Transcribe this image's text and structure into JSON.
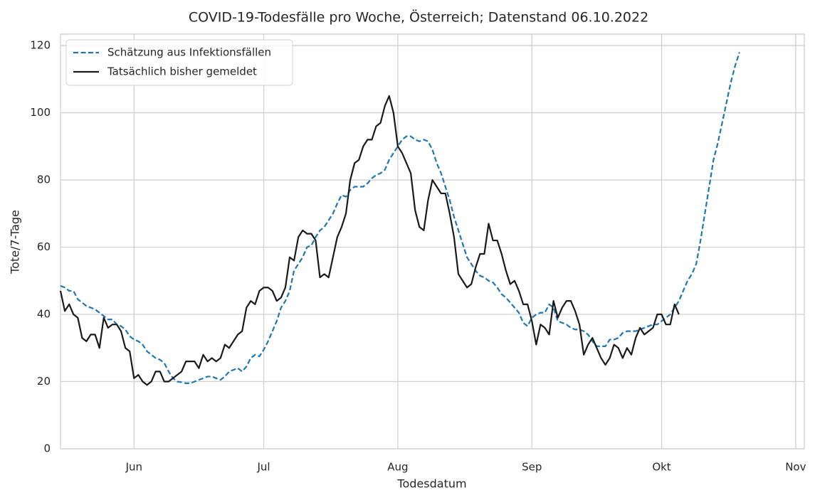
{
  "chart_data": {
    "type": "line",
    "title": "COVID-19-Todesfälle pro Woche, Österreich; Datenstand 06.10.2022",
    "xlabel": "Todesdatum",
    "ylabel": "Tote/7-Tage",
    "xlim": [
      -17,
      155
    ],
    "ylim": [
      0,
      123.4
    ],
    "xticks": [
      {
        "value": 0,
        "label": "Jun"
      },
      {
        "value": 30,
        "label": "Jul"
      },
      {
        "value": 61,
        "label": "Aug"
      },
      {
        "value": 92,
        "label": "Sep"
      },
      {
        "value": 122,
        "label": "Okt"
      },
      {
        "value": 153,
        "label": "Nov"
      }
    ],
    "yticks": [
      0,
      20,
      40,
      60,
      80,
      100,
      120
    ],
    "grid": true,
    "legend": "upper left",
    "x": [
      -17,
      -16,
      -15,
      -14,
      -13,
      -12,
      -11,
      -10,
      -9,
      -8,
      -7,
      -6,
      -5,
      -4,
      -3,
      -2,
      -1,
      0,
      1,
      2,
      3,
      4,
      5,
      6,
      7,
      8,
      9,
      10,
      11,
      12,
      13,
      14,
      15,
      16,
      17,
      18,
      19,
      20,
      21,
      22,
      23,
      24,
      25,
      26,
      27,
      28,
      29,
      30,
      31,
      32,
      33,
      34,
      35,
      36,
      37,
      38,
      39,
      40,
      41,
      42,
      43,
      44,
      45,
      46,
      47,
      48,
      49,
      50,
      51,
      52,
      53,
      54,
      55,
      56,
      57,
      58,
      59,
      60,
      61,
      62,
      63,
      64,
      65,
      66,
      67,
      68,
      69,
      70,
      71,
      72,
      73,
      74,
      75,
      76,
      77,
      78,
      79,
      80,
      81,
      82,
      83,
      84,
      85,
      86,
      87,
      88,
      89,
      90,
      91,
      92,
      93,
      94,
      95,
      96,
      97,
      98,
      99,
      100,
      101,
      102,
      103,
      104,
      105,
      106,
      107,
      108,
      109,
      110,
      111,
      112,
      113,
      114,
      115,
      116,
      117,
      118,
      119,
      120,
      121,
      122,
      123,
      124,
      125,
      126,
      127,
      128,
      129,
      130,
      131,
      132,
      133,
      134,
      135,
      136,
      137,
      138,
      139,
      140
    ],
    "series": [
      {
        "name": "Schätzung aus Infektionsfällen",
        "color": "#1f77b4",
        "dashed": true,
        "values": [
          48.5,
          48,
          47,
          47,
          44.5,
          43.5,
          42.5,
          42,
          41.5,
          40.5,
          39.5,
          38.5,
          38.5,
          37,
          36.5,
          35.5,
          33.5,
          32.5,
          32,
          31,
          29,
          28,
          27,
          26.5,
          25.5,
          23,
          21,
          20,
          19.8,
          19.5,
          19.5,
          20,
          20.5,
          21,
          21.5,
          21.5,
          21,
          20.5,
          21.5,
          23,
          23.5,
          24,
          23,
          24.5,
          27,
          28,
          27.5,
          29.5,
          32,
          35,
          38,
          42,
          44,
          47,
          53,
          55,
          57,
          60,
          60.5,
          63,
          65,
          66,
          68,
          70,
          73,
          75.5,
          75,
          77,
          78,
          78,
          78,
          79,
          80.5,
          81.5,
          82,
          83,
          86,
          88,
          90,
          92,
          93,
          93,
          92,
          91.5,
          92,
          91.5,
          89,
          85,
          82,
          78,
          74,
          69,
          65,
          61,
          57,
          55,
          53,
          51.5,
          51,
          50,
          49.5,
          48,
          46,
          45,
          43.5,
          42,
          40.5,
          37.5,
          36.5,
          39,
          40,
          40.5,
          40.5,
          43,
          42,
          38,
          37.5,
          37,
          36,
          35.5,
          35.5,
          35,
          34,
          32,
          30.5,
          30.5,
          30.5,
          32.5,
          32.5,
          33,
          34.5,
          35,
          35,
          35,
          35.5,
          36,
          36.5,
          37,
          37,
          38,
          39,
          40,
          42,
          44,
          47,
          50,
          52,
          55,
          62,
          70,
          78,
          86,
          91,
          97,
          103,
          109,
          114,
          118
        ]
      },
      {
        "name": "Tatsächlich bisher gemeldet",
        "color": "#1a1a1a",
        "dashed": false,
        "values": [
          47,
          41,
          43,
          40,
          39,
          33,
          32,
          34,
          34,
          30,
          39,
          36,
          37,
          37,
          35,
          30,
          29,
          21,
          22,
          20,
          19,
          20,
          23,
          23,
          20,
          20,
          21,
          22,
          23,
          26,
          26,
          26,
          24,
          28,
          26,
          27,
          26,
          27,
          31,
          30,
          32,
          34,
          35,
          42,
          44,
          43,
          47,
          48,
          48,
          47,
          44,
          45,
          48,
          57,
          56,
          63,
          65,
          64,
          64,
          62,
          51,
          52,
          51,
          57,
          63,
          66,
          70,
          80,
          85,
          86,
          90,
          92,
          92,
          96,
          97,
          102,
          105,
          100,
          90,
          88,
          85,
          82,
          71,
          66,
          65,
          74,
          80,
          78,
          76,
          76,
          70,
          63,
          52,
          50,
          48,
          49,
          54,
          58,
          58,
          67,
          62,
          62,
          58,
          53,
          49,
          50,
          47,
          43,
          43,
          38,
          31,
          37,
          36,
          34,
          44,
          39,
          42,
          44,
          44,
          41,
          37,
          28,
          31,
          33,
          30,
          27,
          25,
          27,
          31,
          30,
          27,
          30,
          28,
          33,
          36,
          34,
          35,
          36,
          40,
          40,
          37,
          37,
          43,
          40,
          null,
          null,
          null,
          null,
          null,
          null,
          null,
          null,
          null,
          null,
          null,
          null,
          null,
          null
        ]
      }
    ]
  }
}
